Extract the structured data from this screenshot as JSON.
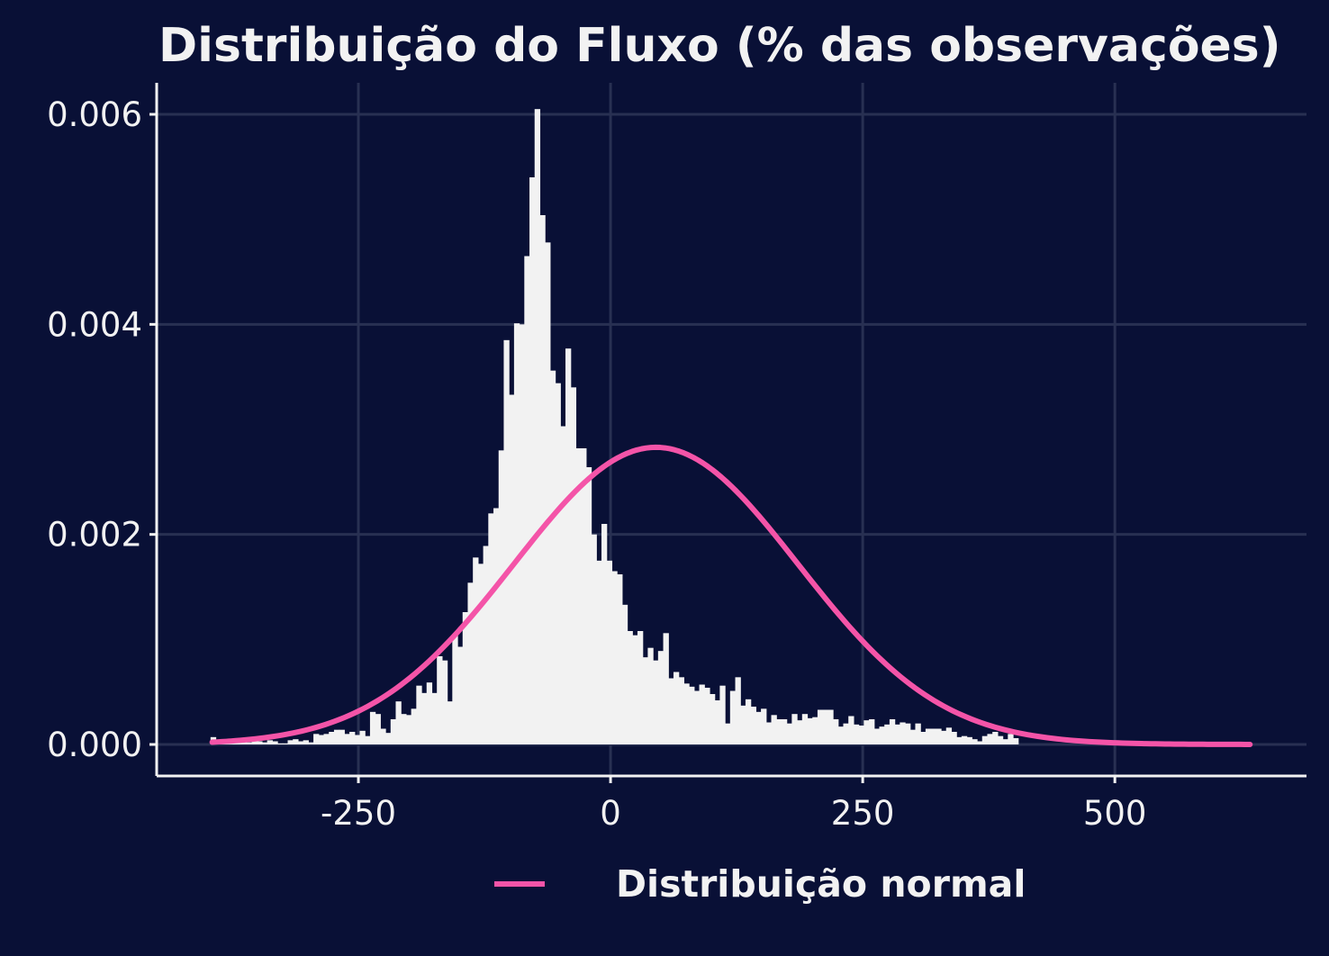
{
  "colors": {
    "background": "#091036",
    "grid": "#283052",
    "axis": "#f2f2f2",
    "bars": "#f2f2f2",
    "normal_curve": "#f454a8",
    "text": "#f2f2f2"
  },
  "chart_data": {
    "type": "bar",
    "subtype": "histogram_with_density_curve",
    "title": "Distribuição do Fluxo (% das observações)",
    "xlabel": "",
    "ylabel": "",
    "xlim": [
      -450,
      690
    ],
    "ylim": [
      -0.0003,
      0.0063
    ],
    "x_ticks": [
      -250,
      0,
      250,
      500
    ],
    "x_tick_labels": [
      "-250",
      "0",
      "250",
      "500"
    ],
    "y_ticks": [
      0,
      0.002,
      0.004,
      0.006
    ],
    "y_tick_labels": [
      "0.000",
      "0.002",
      "0.004",
      "0.006"
    ],
    "grid": true,
    "histogram": {
      "bin_width": 5.1,
      "bin_start": -396.6,
      "densities": [
        7e-05,
        2e-05,
        2e-05,
        3e-05,
        4e-05,
        2e-05,
        3e-05,
        2e-05,
        3e-05,
        3e-05,
        2e-05,
        4e-05,
        3e-05,
        1e-05,
        1e-05,
        4e-05,
        5e-05,
        3e-05,
        4e-05,
        2e-05,
        0.0001,
        9e-05,
        0.0001,
        0.00012,
        0.00014,
        0.00014,
        0.0001,
        0.00012,
        9e-05,
        0.00013,
        8e-05,
        0.00031,
        0.00029,
        0.00015,
        0.00011,
        0.00024,
        0.00041,
        0.00029,
        0.00028,
        0.00034,
        0.00056,
        0.00049,
        0.00059,
        0.00049,
        0.00084,
        0.0008,
        0.00041,
        0.00105,
        0.00093,
        0.00126,
        0.00154,
        0.00178,
        0.00172,
        0.00189,
        0.0022,
        0.00225,
        0.0028,
        0.00385,
        0.00333,
        0.00401,
        0.004,
        0.00465,
        0.0054,
        0.00605,
        0.00504,
        0.00478,
        0.00356,
        0.00344,
        0.00303,
        0.00377,
        0.0034,
        0.00282,
        0.00282,
        0.00264,
        0.002,
        0.00175,
        0.0021,
        0.00175,
        0.00165,
        0.00162,
        0.00133,
        0.00108,
        0.00104,
        0.00108,
        0.00083,
        0.00092,
        0.0008,
        0.00089,
        0.00106,
        0.00063,
        0.00069,
        0.00064,
        0.00058,
        0.00055,
        0.00051,
        0.00057,
        0.00054,
        0.00048,
        0.00042,
        0.00056,
        0.0002,
        0.00051,
        0.00064,
        0.00037,
        0.00043,
        0.00036,
        0.00031,
        0.00034,
        0.00021,
        0.00028,
        0.00024,
        0.00024,
        0.0002,
        0.00029,
        0.00023,
        0.00029,
        0.00025,
        0.00026,
        0.00033,
        0.00033,
        0.00033,
        0.00024,
        0.00017,
        0.0002,
        0.00027,
        0.00019,
        0.00018,
        0.00023,
        0.00024,
        0.00015,
        0.00017,
        0.00019,
        0.00024,
        0.00019,
        0.00021,
        0.0002,
        0.00014,
        0.0002,
        0.00012,
        0.00015,
        0.00015,
        0.00015,
        0.00013,
        0.00016,
        0.00012,
        7e-05,
        8e-05,
        7e-05,
        5e-05,
        3e-05,
        8e-05,
        0.0001,
        0.00012,
        8e-05,
        5e-05,
        0.0001,
        6e-05
      ]
    },
    "series": [
      {
        "name": "Distribuição normal",
        "type": "line",
        "distribution": "normal",
        "mean": 45,
        "sd": 141,
        "x_range": [
          -395,
          634
        ]
      }
    ],
    "legend": {
      "position": "bottom",
      "entries": [
        "Distribuição normal"
      ]
    }
  }
}
